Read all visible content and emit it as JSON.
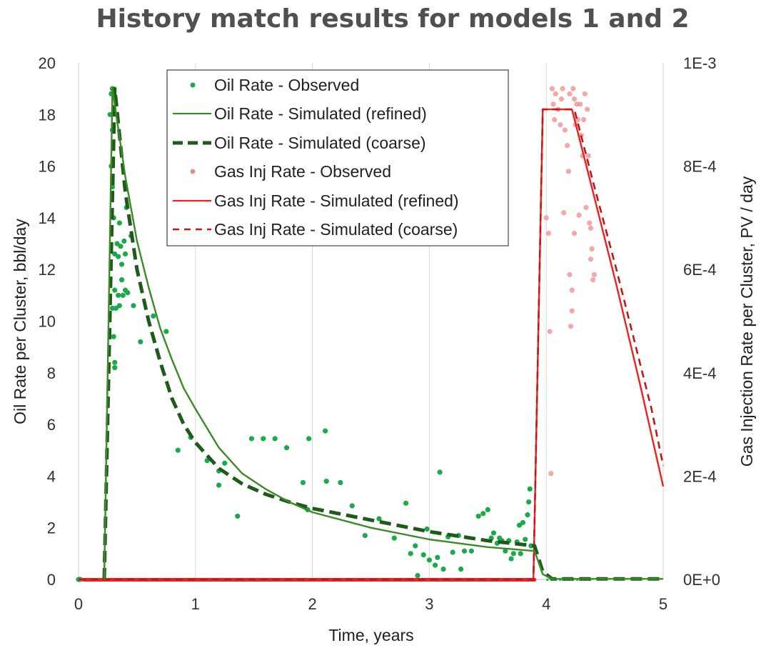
{
  "chart_data": {
    "type": "scatter+line",
    "title": "History match results for models 1 and 2",
    "xlabel": "Time, years",
    "ylabel_left": "Oil Rate per Cluster, bbl/day",
    "ylabel_right": "Gas Injection Rate per Cluster, PV / day",
    "xlim": [
      0,
      5
    ],
    "ylim_left": [
      0,
      20
    ],
    "ylim_right": [
      0,
      0.001
    ],
    "x_ticks": [
      "0",
      "1",
      "2",
      "3",
      "4",
      "5"
    ],
    "y_left_ticks": [
      "0",
      "2",
      "4",
      "6",
      "8",
      "10",
      "12",
      "14",
      "16",
      "18",
      "20"
    ],
    "y_right_ticks": [
      "0E+0",
      "2E-4",
      "4E-4",
      "6E-4",
      "8E-4",
      "1E-3"
    ],
    "y_right_tick_values": [
      0,
      0.0002,
      0.0004,
      0.0006,
      0.0008,
      0.001
    ],
    "grid": "vertical major gridlines",
    "legend_position": "top-center",
    "colors": {
      "oil_observed": "#1aaa4a",
      "oil_refined": "#3a8a28",
      "oil_coarse": "#1f5a1a",
      "gas_observed": "#f08a8a",
      "gas_refined": "#ee2020",
      "gas_coarse": "#c01818"
    },
    "series": [
      {
        "name": "Oil Rate - Observed",
        "kind": "scatter",
        "axis": "left",
        "color": "#1aaa4a",
        "points": [
          [
            0.0,
            0
          ],
          [
            0.01,
            0
          ],
          [
            0.27,
            18.0
          ],
          [
            0.28,
            18.8
          ],
          [
            0.29,
            19.0
          ],
          [
            0.29,
            17.4
          ],
          [
            0.28,
            16.0
          ],
          [
            0.29,
            15.2
          ],
          [
            0.3,
            14.0
          ],
          [
            0.31,
            12.6
          ],
          [
            0.31,
            11.2
          ],
          [
            0.29,
            10.5
          ],
          [
            0.32,
            10.5
          ],
          [
            0.3,
            9.4
          ],
          [
            0.31,
            8.4
          ],
          [
            0.31,
            8.2
          ],
          [
            0.33,
            13.0
          ],
          [
            0.34,
            12.5
          ],
          [
            0.35,
            13.8
          ],
          [
            0.34,
            11.0
          ],
          [
            0.35,
            10.6
          ],
          [
            0.37,
            12.2
          ],
          [
            0.37,
            11.6
          ],
          [
            0.38,
            11.0
          ],
          [
            0.39,
            13.1
          ],
          [
            0.4,
            11.2
          ],
          [
            0.41,
            14.4
          ],
          [
            0.42,
            11.1
          ],
          [
            0.4,
            12.6
          ],
          [
            0.36,
            12.9
          ],
          [
            0.45,
            13.3
          ],
          [
            0.47,
            10.6
          ],
          [
            0.53,
            9.2
          ],
          [
            0.64,
            10.2
          ],
          [
            0.75,
            9.6
          ],
          [
            0.85,
            5.0
          ],
          [
            0.96,
            5.5
          ],
          [
            1.1,
            4.6
          ],
          [
            1.2,
            3.65
          ],
          [
            1.2,
            4.2
          ],
          [
            1.25,
            4.5
          ],
          [
            1.36,
            2.45
          ],
          [
            1.48,
            5.45
          ],
          [
            1.58,
            5.45
          ],
          [
            1.68,
            5.45
          ],
          [
            1.78,
            5.1
          ],
          [
            1.92,
            3.75
          ],
          [
            1.96,
            2.7
          ],
          [
            1.97,
            5.45
          ],
          [
            2.11,
            5.75
          ],
          [
            2.12,
            3.8
          ],
          [
            2.24,
            3.75
          ],
          [
            2.34,
            2.85
          ],
          [
            2.45,
            1.7
          ],
          [
            2.57,
            2.35
          ],
          [
            2.7,
            1.6
          ],
          [
            2.8,
            2.95
          ],
          [
            2.84,
            1.0
          ],
          [
            2.88,
            1.3
          ],
          [
            2.9,
            0.15
          ],
          [
            2.95,
            0.95
          ],
          [
            2.98,
            1.95
          ],
          [
            3.0,
            0.75
          ],
          [
            3.05,
            0.55
          ],
          [
            3.07,
            0.85
          ],
          [
            3.09,
            4.15
          ],
          [
            3.12,
            0.4
          ],
          [
            3.16,
            1.65
          ],
          [
            3.2,
            1.05
          ],
          [
            3.25,
            1.7
          ],
          [
            3.27,
            0.4
          ],
          [
            3.3,
            1.1
          ],
          [
            3.36,
            1.1
          ],
          [
            3.42,
            2.45
          ],
          [
            3.46,
            2.55
          ],
          [
            3.5,
            2.7
          ],
          [
            3.53,
            1.6
          ],
          [
            3.55,
            1.8
          ],
          [
            3.58,
            1.4
          ],
          [
            3.6,
            1.6
          ],
          [
            3.62,
            1.5
          ],
          [
            3.65,
            1.1
          ],
          [
            3.68,
            1.5
          ],
          [
            3.7,
            0.8
          ],
          [
            3.72,
            1.0
          ],
          [
            3.75,
            1.45
          ],
          [
            3.77,
            2.1
          ],
          [
            3.78,
            1.0
          ],
          [
            3.8,
            2.2
          ],
          [
            3.82,
            1.55
          ],
          [
            3.84,
            2.5
          ],
          [
            3.85,
            3.0
          ],
          [
            3.86,
            3.5
          ],
          [
            3.87,
            1.3
          ]
        ]
      },
      {
        "name": "Oil Rate - Simulated (refined)",
        "kind": "line",
        "axis": "left",
        "color": "#3a8a28",
        "dash": "solid",
        "points": [
          [
            0.22,
            0
          ],
          [
            0.29,
            19.0
          ],
          [
            0.4,
            15.6
          ],
          [
            0.5,
            13.1
          ],
          [
            0.6,
            11.3
          ],
          [
            0.7,
            9.7
          ],
          [
            0.8,
            8.5
          ],
          [
            0.9,
            7.4
          ],
          [
            1.0,
            6.6
          ],
          [
            1.2,
            5.1
          ],
          [
            1.4,
            4.1
          ],
          [
            1.6,
            3.5
          ],
          [
            1.8,
            3.0
          ],
          [
            2.0,
            2.6
          ],
          [
            2.5,
            2.0
          ],
          [
            3.0,
            1.55
          ],
          [
            3.5,
            1.25
          ],
          [
            3.9,
            1.1
          ],
          [
            3.97,
            0.2
          ],
          [
            4.05,
            0.02
          ],
          [
            5.0,
            0.02
          ]
        ]
      },
      {
        "name": "Oil Rate - Simulated (coarse)",
        "kind": "line",
        "axis": "left",
        "color": "#1f5a1a",
        "dash": "dashed",
        "points": [
          [
            0.22,
            0
          ],
          [
            0.31,
            19.0
          ],
          [
            0.4,
            15.0
          ],
          [
            0.5,
            12.0
          ],
          [
            0.6,
            10.0
          ],
          [
            0.7,
            8.4
          ],
          [
            0.8,
            7.0
          ],
          [
            0.9,
            6.0
          ],
          [
            1.0,
            5.3
          ],
          [
            1.2,
            4.3
          ],
          [
            1.4,
            3.7
          ],
          [
            1.6,
            3.3
          ],
          [
            1.8,
            3.0
          ],
          [
            2.0,
            2.75
          ],
          [
            2.5,
            2.3
          ],
          [
            3.0,
            1.85
          ],
          [
            3.5,
            1.5
          ],
          [
            3.9,
            1.3
          ],
          [
            3.97,
            0.3
          ],
          [
            4.05,
            0.02
          ],
          [
            5.0,
            0.02
          ]
        ]
      },
      {
        "name": "Gas Inj Rate - Observed",
        "kind": "scatter",
        "axis": "right",
        "color": "#f08a8a",
        "points": [
          [
            0.02,
            0
          ],
          [
            4.0,
            0.0007
          ],
          [
            4.02,
            0.00067
          ],
          [
            4.03,
            0.00048
          ],
          [
            4.04,
            0.000205
          ],
          [
            4.05,
            0.00095
          ],
          [
            4.06,
            0.00092
          ],
          [
            4.07,
            0.00089
          ],
          [
            4.08,
            0.00094
          ],
          [
            4.1,
            0.00091
          ],
          [
            4.12,
            0.00088
          ],
          [
            4.13,
            0.00093
          ],
          [
            4.14,
            0.00095
          ],
          [
            4.15,
            0.00071
          ],
          [
            4.16,
            0.00087
          ],
          [
            4.18,
            0.00084
          ],
          [
            4.19,
            0.00079
          ],
          [
            4.2,
            0.00094
          ],
          [
            4.2,
            0.00059
          ],
          [
            4.21,
            0.00049
          ],
          [
            4.22,
            0.00052
          ],
          [
            4.22,
            0.00056
          ],
          [
            4.23,
            0.00095
          ],
          [
            4.24,
            0.00093
          ],
          [
            4.24,
            0.00067
          ],
          [
            4.25,
            0.00088
          ],
          [
            4.26,
            0.00092
          ],
          [
            4.27,
            0.00089
          ],
          [
            4.28,
            0.000705
          ],
          [
            4.29,
            0.00092
          ],
          [
            4.3,
            0.00086
          ],
          [
            4.31,
            0.00082
          ],
          [
            4.32,
            0.00089
          ],
          [
            4.33,
            0.00094
          ],
          [
            4.34,
            0.00072
          ],
          [
            4.35,
            0.00091
          ],
          [
            4.36,
            0.00082
          ],
          [
            4.37,
            0.00069
          ],
          [
            4.38,
            0.00068
          ],
          [
            4.38,
            0.00062
          ],
          [
            4.39,
            0.00064
          ],
          [
            4.4,
            0.00058
          ],
          [
            4.41,
            0.00059
          ]
        ]
      },
      {
        "name": "Gas Inj Rate - Simulated (refined)",
        "kind": "line",
        "axis": "right",
        "color": "#ee2020",
        "dash": "solid",
        "points": [
          [
            0.0,
            0
          ],
          [
            3.89,
            0
          ],
          [
            3.97,
            0.00091
          ],
          [
            4.22,
            0.00091
          ],
          [
            4.4,
            0.00075
          ],
          [
            4.6,
            0.00057
          ],
          [
            4.8,
            0.00038
          ],
          [
            4.9,
            0.00028
          ],
          [
            5.0,
            0.00018
          ]
        ]
      },
      {
        "name": "Gas Inj Rate - Simulated (coarse)",
        "kind": "line",
        "axis": "right",
        "color": "#c01818",
        "dash": "dashed",
        "points": [
          [
            0.0,
            0
          ],
          [
            3.89,
            0
          ],
          [
            3.97,
            0.00091
          ],
          [
            4.24,
            0.00091
          ],
          [
            4.4,
            0.00077
          ],
          [
            4.6,
            0.0006
          ],
          [
            4.8,
            0.00042
          ],
          [
            4.9,
            0.00033
          ],
          [
            5.0,
            0.00022
          ]
        ]
      }
    ]
  }
}
